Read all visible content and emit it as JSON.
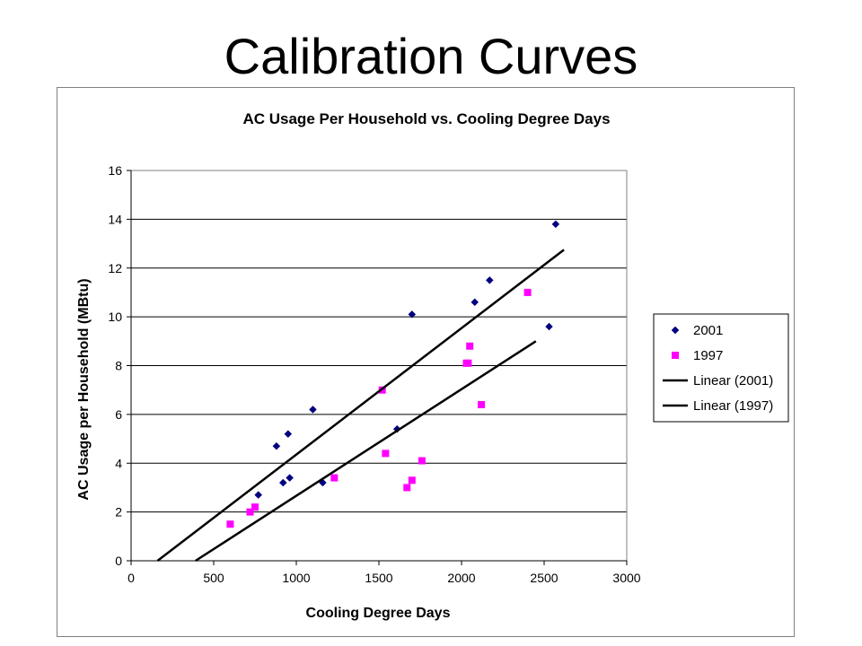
{
  "slide": {
    "title": "Calibration Curves"
  },
  "chart_data": {
    "type": "scatter",
    "title": "AC Usage Per Household vs. Cooling Degree Days",
    "xlabel": "Cooling Degree Days",
    "ylabel": "AC Usage per Household (MBtu)",
    "xlim": [
      0,
      3000
    ],
    "ylim": [
      0,
      16
    ],
    "x_ticks": [
      0,
      500,
      1000,
      1500,
      2000,
      2500,
      3000
    ],
    "y_ticks": [
      0,
      2,
      4,
      6,
      8,
      10,
      12,
      14,
      16
    ],
    "grid": "horizontal major gridlines",
    "legend_position": "right",
    "series": [
      {
        "name": "2001",
        "marker": "diamond",
        "color": "#000080",
        "points": [
          [
            770,
            2.7
          ],
          [
            880,
            4.7
          ],
          [
            920,
            3.2
          ],
          [
            950,
            5.2
          ],
          [
            960,
            3.4
          ],
          [
            1100,
            6.2
          ],
          [
            1160,
            3.2
          ],
          [
            1610,
            5.4
          ],
          [
            1700,
            10.1
          ],
          [
            2080,
            10.6
          ],
          [
            2170,
            11.5
          ],
          [
            2530,
            9.6
          ],
          [
            2570,
            13.8
          ]
        ]
      },
      {
        "name": "1997",
        "marker": "square",
        "color": "#ff00ff",
        "points": [
          [
            600,
            1.5
          ],
          [
            720,
            2.0
          ],
          [
            750,
            2.2
          ],
          [
            1230,
            3.4
          ],
          [
            1520,
            7.0
          ],
          [
            1540,
            4.4
          ],
          [
            1670,
            3.0
          ],
          [
            1700,
            3.3
          ],
          [
            1760,
            4.1
          ],
          [
            2030,
            8.1
          ],
          [
            2040,
            8.1
          ],
          [
            2050,
            8.8
          ],
          [
            2120,
            6.4
          ],
          [
            2400,
            11.0
          ]
        ]
      },
      {
        "name": "Linear (2001)",
        "type": "line",
        "color": "#000000",
        "points": [
          [
            160,
            0
          ],
          [
            2620,
            12.75
          ]
        ]
      },
      {
        "name": "Linear (1997)",
        "type": "line",
        "color": "#000000",
        "points": [
          [
            390,
            0
          ],
          [
            2450,
            9.0
          ]
        ]
      }
    ]
  }
}
